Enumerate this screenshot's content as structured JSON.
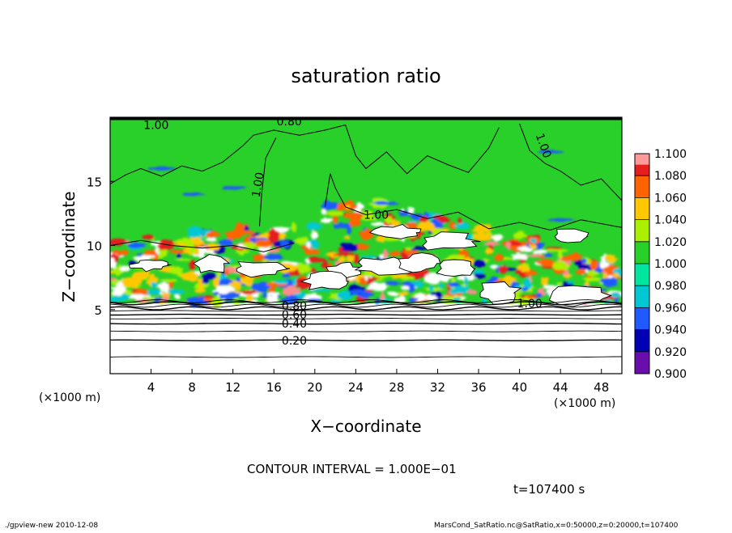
{
  "chart_data": {
    "type": "heatmap",
    "title": "saturation ratio",
    "xlabel": "X−coordinate",
    "ylabel": "Z−coordinate",
    "x_unit": "(×1000 m)",
    "y_unit": "(×1000 m)",
    "xlim": [
      0,
      50
    ],
    "ylim": [
      0,
      20
    ],
    "xticks": [
      4,
      8,
      12,
      16,
      20,
      24,
      28,
      32,
      36,
      40,
      44,
      48
    ],
    "yticks": [
      5,
      10,
      15
    ],
    "colorbar": {
      "levels": [
        "0.900",
        "0.920",
        "0.940",
        "0.960",
        "0.980",
        "1.000",
        "1.020",
        "1.040",
        "1.060",
        "1.080",
        "1.100"
      ],
      "colors": [
        "#6a0dad",
        "#0000b4",
        "#1e5aff",
        "#00c8d2",
        "#00e6a0",
        "#2ad02a",
        "#aaf000",
        "#ffc800",
        "#ff6400",
        "#e61e1e",
        "#ff8c8c"
      ]
    },
    "contour_interval": "CONTOUR INTERVAL = 1.000E−01",
    "contour_labels": [
      {
        "text": "0.20",
        "x": 18,
        "z": 2.6
      },
      {
        "text": "0.40",
        "x": 18,
        "z": 3.9
      },
      {
        "text": "0.60",
        "x": 18,
        "z": 4.6
      },
      {
        "text": "0.80",
        "x": 18,
        "z": 5.3
      },
      {
        "text": "0.80",
        "x": 17.5,
        "z": 19.7
      },
      {
        "text": "1.00",
        "x": 4.5,
        "z": 19.4
      },
      {
        "text": "1.00",
        "x": 14.8,
        "z": 15.0
      },
      {
        "text": "1.00",
        "x": 42,
        "z": 18.0
      },
      {
        "text": "1.00",
        "x": 26,
        "z": 12.4
      },
      {
        "text": "1.00",
        "x": 41,
        "z": 5.5
      }
    ],
    "sublevel_z": [
      1.3,
      2.6,
      3.3,
      3.9,
      4.3,
      4.6,
      4.9,
      5.1,
      5.3,
      5.5,
      5.65
    ]
  },
  "time_label": "t=107400 s",
  "footer_left": "./gpview-new   2010-12-08",
  "footer_right": "MarsCond_SatRatio.nc@SatRatio,x=0:50000,z=0:20000,t=107400"
}
